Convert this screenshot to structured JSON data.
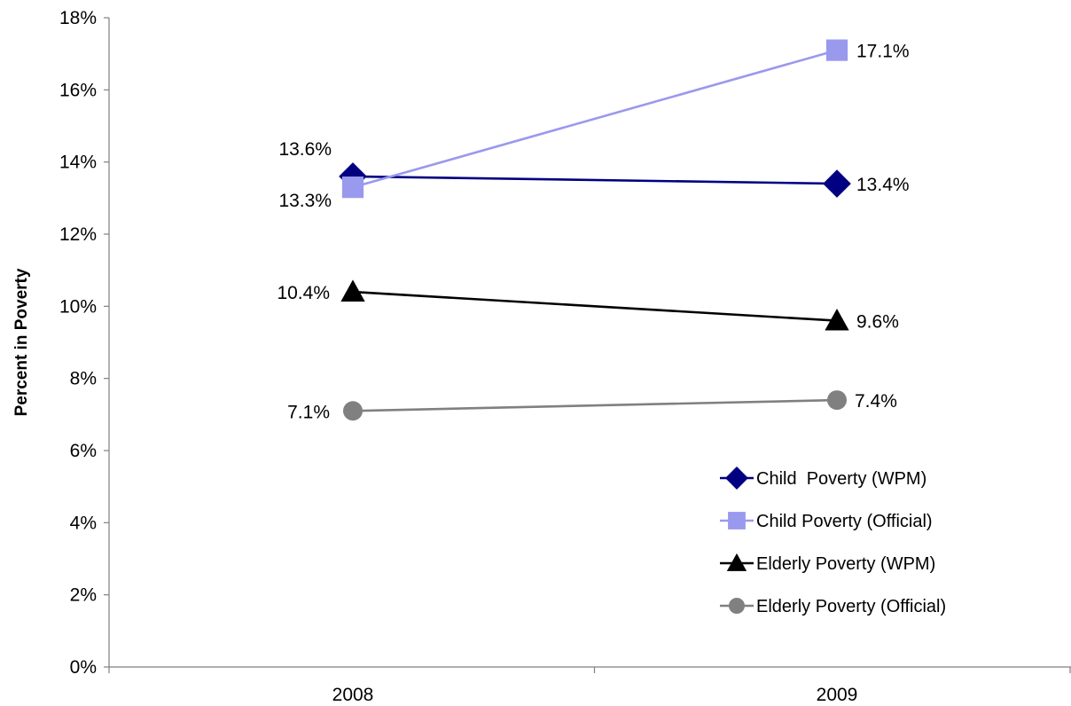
{
  "chart_data": {
    "type": "line",
    "title": "",
    "xlabel": "",
    "ylabel": "Percent in Poverty",
    "categories": [
      "2008",
      "2009"
    ],
    "ylim": [
      0,
      18
    ],
    "yticks": [
      0,
      2,
      4,
      6,
      8,
      10,
      12,
      14,
      16,
      18
    ],
    "ytick_labels": [
      "0%",
      "2%",
      "4%",
      "6%",
      "8%",
      "10%",
      "12%",
      "14%",
      "16%",
      "18%"
    ],
    "grid": false,
    "legend_position": "bottom-right",
    "series": [
      {
        "name": "Child  Poverty (WPM)",
        "values": [
          13.6,
          13.4
        ],
        "labels": [
          "13.6%",
          "13.4%"
        ],
        "color": "#000080",
        "marker": "diamond"
      },
      {
        "name": "Child Poverty (Official)",
        "values": [
          13.3,
          17.1
        ],
        "labels": [
          "13.3%",
          "17.1%"
        ],
        "color": "#9999ee",
        "marker": "square"
      },
      {
        "name": "Elderly Poverty (WPM)",
        "values": [
          10.4,
          9.6
        ],
        "labels": [
          "10.4%",
          "9.6%"
        ],
        "color": "#000000",
        "marker": "triangle"
      },
      {
        "name": "Elderly Poverty (Official)",
        "values": [
          7.1,
          7.4
        ],
        "labels": [
          "7.1%",
          "7.4%"
        ],
        "color": "#808080",
        "marker": "circle"
      }
    ]
  }
}
